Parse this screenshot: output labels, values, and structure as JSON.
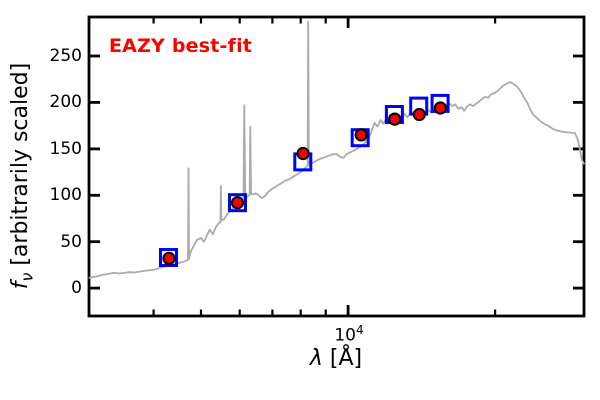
{
  "figure": {
    "annotation": {
      "text": "EAZY best-fit",
      "color": "#ff0000"
    },
    "x_axis": {
      "label_lambda": "λ",
      "label_rest": " [Å]",
      "tick_base": "10",
      "tick_exp": "4"
    },
    "y_axis": {
      "label_f": "f",
      "label_sub": "ν",
      "label_rest": " [arbitrarily scaled]"
    }
  },
  "chart_data": {
    "type": "line",
    "title": "EAZY best-fit",
    "xlabel": "λ [Å]",
    "ylabel": "f_ν [arbitrarily scaled]",
    "x_scale": "log",
    "y_scale": "linear",
    "xlim": [
      2950,
      30400
    ],
    "ylim": [
      -30,
      292
    ],
    "x_ticks_major": [
      10000
    ],
    "x_ticks_minor": [
      4000,
      5000,
      6000,
      7000,
      8000,
      9000,
      20000
    ],
    "y_ticks": [
      0,
      50,
      100,
      150,
      200,
      250
    ],
    "grid": false,
    "legend": false,
    "axis_color": "#000000",
    "series": [
      {
        "name": "model_spectrum",
        "type": "line",
        "color": "#ababab",
        "linewidth": 1.8,
        "points": [
          [
            2954,
            11
          ],
          [
            3053,
            12.5
          ],
          [
            3155,
            14.5
          ],
          [
            3245,
            15.5
          ],
          [
            3322,
            16.5
          ],
          [
            3385,
            15.8
          ],
          [
            3466,
            16.3
          ],
          [
            3565,
            17.2
          ],
          [
            3667,
            17
          ],
          [
            3772,
            18
          ],
          [
            3880,
            19
          ],
          [
            3990,
            19.5
          ],
          [
            4105,
            21.5
          ],
          [
            4222,
            23.5
          ],
          [
            4343,
            25
          ],
          [
            4467,
            26.5
          ],
          [
            4573,
            28
          ],
          [
            4660,
            29.5
          ],
          [
            4704,
            30.5
          ],
          [
            4715,
            129
          ],
          [
            4726,
            31.5
          ],
          [
            4771,
            40
          ],
          [
            4838,
            46
          ],
          [
            4907,
            52
          ],
          [
            5000,
            54
          ],
          [
            5071,
            50
          ],
          [
            5143,
            57
          ],
          [
            5216,
            63
          ],
          [
            5290,
            58
          ],
          [
            5365,
            66
          ],
          [
            5441,
            70
          ],
          [
            5480,
            71
          ],
          [
            5493,
            110
          ],
          [
            5505,
            73
          ],
          [
            5571,
            74
          ],
          [
            5650,
            79
          ],
          [
            5730,
            83
          ],
          [
            5811,
            86
          ],
          [
            5894,
            89
          ],
          [
            5977,
            92
          ],
          [
            6062,
            95
          ],
          [
            6110,
            96
          ],
          [
            6134,
            197
          ],
          [
            6158,
            97.5
          ],
          [
            6206,
            98
          ],
          [
            6265,
            100
          ],
          [
            6290,
            100.5
          ],
          [
            6310,
            174
          ],
          [
            6332,
            101.5
          ],
          [
            6384,
            101
          ],
          [
            6475,
            102
          ],
          [
            6567,
            100
          ],
          [
            6660,
            97
          ],
          [
            6755,
            99
          ],
          [
            6851,
            103
          ],
          [
            6948,
            106
          ],
          [
            7047,
            108
          ],
          [
            7147,
            110
          ],
          [
            7248,
            112
          ],
          [
            7351,
            114
          ],
          [
            7455,
            116
          ],
          [
            7561,
            117
          ],
          [
            7668,
            119
          ],
          [
            7777,
            121
          ],
          [
            7888,
            123
          ],
          [
            8000,
            125
          ],
          [
            8113,
            128
          ],
          [
            8229,
            131
          ],
          [
            8265,
            132
          ],
          [
            8287,
            287
          ],
          [
            8310,
            133
          ],
          [
            8346,
            133
          ],
          [
            8464,
            135
          ],
          [
            8625,
            137.5
          ],
          [
            8789,
            139.5
          ],
          [
            8956,
            141
          ],
          [
            9126,
            142.5
          ],
          [
            9298,
            144
          ],
          [
            9474,
            144.5
          ],
          [
            9654,
            141
          ],
          [
            9791,
            140.5
          ],
          [
            9930,
            144
          ],
          [
            10071,
            146
          ],
          [
            10214,
            147.5
          ],
          [
            10359,
            149
          ],
          [
            10506,
            151
          ],
          [
            10655,
            153
          ],
          [
            10806,
            156
          ],
          [
            10959,
            160
          ],
          [
            11115,
            166
          ],
          [
            11220,
            172
          ],
          [
            11326,
            178
          ],
          [
            11487,
            174
          ],
          [
            11650,
            181
          ],
          [
            11815,
            177
          ],
          [
            11983,
            183
          ],
          [
            12153,
            179
          ],
          [
            12326,
            185
          ],
          [
            12500,
            181
          ],
          [
            12678,
            186
          ],
          [
            12858,
            183
          ],
          [
            13041,
            188
          ],
          [
            13226,
            184
          ],
          [
            13414,
            189
          ],
          [
            13604,
            186
          ],
          [
            13798,
            190
          ],
          [
            13994,
            187
          ],
          [
            14193,
            191
          ],
          [
            14394,
            188
          ],
          [
            14599,
            192
          ],
          [
            14806,
            189
          ],
          [
            15017,
            193
          ],
          [
            15230,
            190
          ],
          [
            15448,
            194
          ],
          [
            15666,
            195
          ],
          [
            15889,
            197
          ],
          [
            16115,
            199
          ],
          [
            16344,
            196
          ],
          [
            16577,
            198
          ],
          [
            16813,
            193
          ],
          [
            17052,
            195
          ],
          [
            17295,
            191
          ],
          [
            17541,
            196
          ],
          [
            17783,
            198
          ],
          [
            18040,
            196
          ],
          [
            18296,
            199
          ],
          [
            18556,
            201
          ],
          [
            18819,
            204
          ],
          [
            19087,
            206
          ],
          [
            19358,
            205
          ],
          [
            19634,
            209
          ],
          [
            19913,
            210
          ],
          [
            20196,
            212
          ],
          [
            20483,
            215
          ],
          [
            20774,
            218
          ],
          [
            21069,
            220
          ],
          [
            21468,
            222
          ],
          [
            21773,
            220
          ],
          [
            22082,
            218
          ],
          [
            22500,
            213
          ],
          [
            22820,
            207
          ],
          [
            23252,
            200
          ],
          [
            23582,
            193
          ],
          [
            23917,
            187
          ],
          [
            24370,
            183
          ],
          [
            24716,
            180
          ],
          [
            25184,
            177
          ],
          [
            25661,
            175
          ],
          [
            26147,
            172
          ],
          [
            26642,
            170
          ],
          [
            27147,
            169
          ],
          [
            27790,
            168
          ],
          [
            28448,
            167.5
          ],
          [
            29122,
            167
          ],
          [
            29536,
            160
          ],
          [
            29814,
            149
          ],
          [
            30096,
            138
          ],
          [
            30380,
            134
          ]
        ],
        "emission_line_peaks": [
          {
            "wavelength": 4715,
            "flux": 129
          },
          {
            "wavelength": 5493,
            "flux": 110
          },
          {
            "wavelength": 6134,
            "flux": 197
          },
          {
            "wavelength": 6310,
            "flux": 174
          },
          {
            "wavelength": 8287,
            "flux": 287
          }
        ]
      },
      {
        "name": "template_photometry",
        "type": "scatter",
        "marker": "open-square",
        "color": "#0004f0",
        "size": 19,
        "points": [
          [
            4290,
            33
          ],
          [
            5940,
            92
          ],
          [
            8080,
            136
          ],
          [
            10590,
            162
          ],
          [
            12440,
            187
          ],
          [
            13950,
            196
          ],
          [
            15430,
            199
          ]
        ]
      },
      {
        "name": "observed_photometry",
        "type": "scatter",
        "marker": "filled-circle",
        "color": "#f20000",
        "edge_color": "#000000",
        "size": 13,
        "points": [
          [
            4300,
            32
          ],
          [
            5940,
            92
          ],
          [
            8090,
            145
          ],
          [
            10640,
            165
          ],
          [
            12460,
            182
          ],
          [
            13990,
            187
          ],
          [
            15450,
            194
          ]
        ]
      }
    ]
  }
}
